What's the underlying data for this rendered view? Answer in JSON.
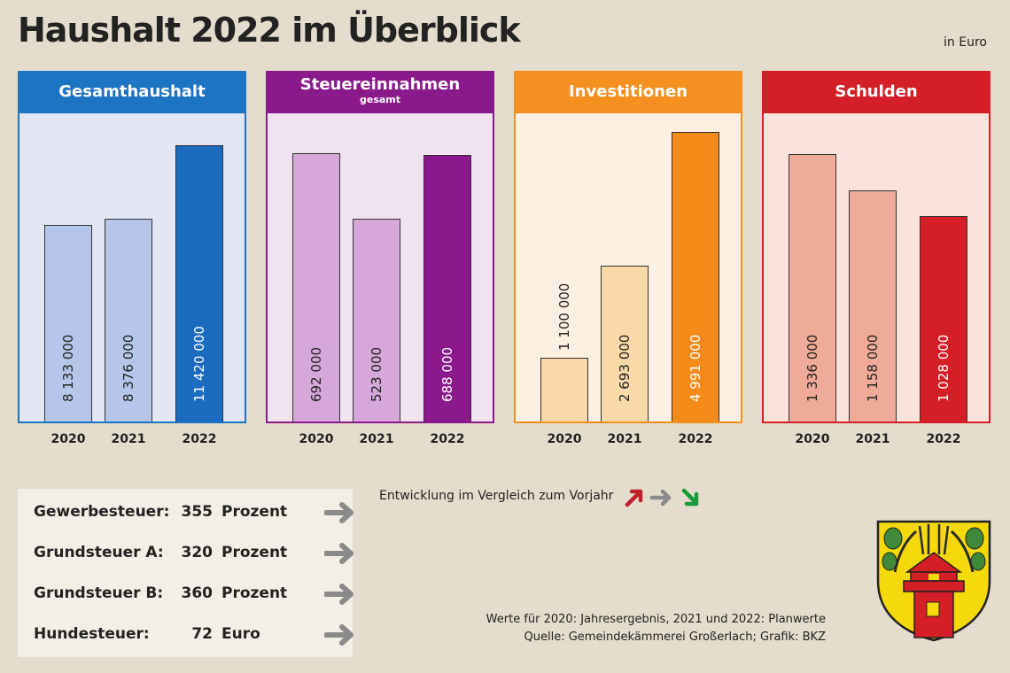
{
  "header": {
    "title": "Haushalt 2022 im Überblick",
    "unit": "in Euro"
  },
  "colors": {
    "gesamt": {
      "head": "#1c74c2",
      "bg": "#e3e7f5",
      "light": "#b5c6e8",
      "dark": "#1b6cbf"
    },
    "steuer": {
      "head": "#8a1a8c",
      "bg": "#f1e2f2",
      "light": "#d6a8d9",
      "dark": "#8a1a8c"
    },
    "invest": {
      "head": "#f39020",
      "bg": "#fdf0e2",
      "light": "#fad8a8",
      "dark": "#f38a1a"
    },
    "schulden": {
      "head": "#d41f26",
      "bg": "#fbe1db",
      "light": "#efaa98",
      "dark": "#d41f26"
    }
  },
  "chart_data": [
    {
      "type": "bar",
      "title": "Gesamthaushalt",
      "subtitle": "",
      "categories": [
        "2020",
        "2021",
        "2022"
      ],
      "values": [
        8133000,
        8376000,
        11420000
      ],
      "labels": [
        "8 133 000",
        "8 376 000",
        "11 420 000"
      ],
      "ylim": [
        0,
        12800000
      ]
    },
    {
      "type": "bar",
      "title": "Steuereinnahmen",
      "subtitle": "gesamt",
      "categories": [
        "2020",
        "2021",
        "2022"
      ],
      "values": [
        692000,
        523000,
        688000
      ],
      "labels": [
        "692 000",
        "523 000",
        "688 000"
      ],
      "ylim": [
        0,
        800000
      ]
    },
    {
      "type": "bar",
      "title": "Investitionen",
      "subtitle": "",
      "categories": [
        "2020",
        "2021",
        "2022"
      ],
      "values": [
        1100000,
        2693000,
        4991000
      ],
      "labels": [
        "1 100 000",
        "2 693 000",
        "4 991 000"
      ],
      "ylim": [
        0,
        5350000
      ]
    },
    {
      "type": "bar",
      "title": "Schulden",
      "subtitle": "",
      "categories": [
        "2020",
        "2021",
        "2022"
      ],
      "values": [
        1336000,
        1158000,
        1028000
      ],
      "labels": [
        "1 336 000",
        "1 158 000",
        "1 028 000"
      ],
      "ylim": [
        0,
        1550000
      ]
    }
  ],
  "taxes": [
    {
      "name": "Gewerbesteuer:",
      "value": "355",
      "unit": "Prozent",
      "trend": "same"
    },
    {
      "name": "Grundsteuer A:",
      "value": "320",
      "unit": "Prozent",
      "trend": "same"
    },
    {
      "name": "Grundsteuer B:",
      "value": "360",
      "unit": "Prozent",
      "trend": "same"
    },
    {
      "name": "Hundesteuer:",
      "value": "72",
      "unit": "Euro",
      "trend": "same"
    }
  ],
  "legend": {
    "text": "Entwicklung im Vergleich zum Vorjahr",
    "up_color": "#c0202a",
    "same_color": "#8a8a8a",
    "down_color": "#1a9a3a"
  },
  "notes": {
    "line1": "Werte für 2020: Jahresergebnis, 2021 und 2022: Planwerte",
    "line2": "Quelle: Gemeindekämmerei Großerlach; Grafik: BKZ"
  },
  "crest": {
    "name": "Wappen Großerlach"
  }
}
